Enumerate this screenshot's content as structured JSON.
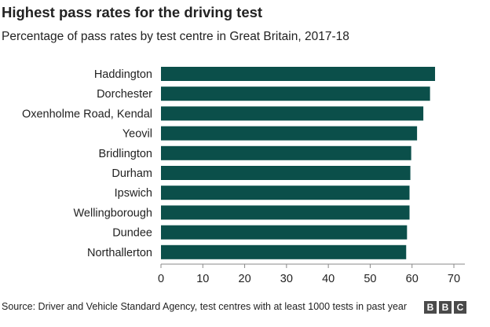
{
  "header": {
    "title": "Highest pass rates for the driving test",
    "subtitle": "Percentage of pass rates by test centre in Great Britain, 2017-18"
  },
  "footer": {
    "source": "Source: Driver and Vehicle Standard Agency, test centres with at least 1000 tests in past year",
    "logo_letters": [
      "B",
      "B",
      "C"
    ]
  },
  "colors": {
    "bar": "#0b4f4a",
    "axis": "#888888",
    "text": "#222222"
  },
  "chart_data": {
    "type": "bar",
    "orientation": "horizontal",
    "title": "Highest pass rates for the driving test",
    "subtitle": "Percentage of pass rates by test centre in Great Britain, 2017-18",
    "categories": [
      "Haddington",
      "Dorchester",
      "Oxenholme Road, Kendal",
      "Yeovil",
      "Bridlington",
      "Durham",
      "Ipswich",
      "Wellingborough",
      "Dundee",
      "Northallerton"
    ],
    "values": [
      65.5,
      64.3,
      62.7,
      61.2,
      59.8,
      59.6,
      59.4,
      59.4,
      58.8,
      58.6
    ],
    "xlim": [
      0,
      70
    ],
    "xticks": [
      "0",
      "10",
      "20",
      "30",
      "40",
      "50",
      "60",
      "70"
    ],
    "grid": false,
    "legend": "none"
  }
}
